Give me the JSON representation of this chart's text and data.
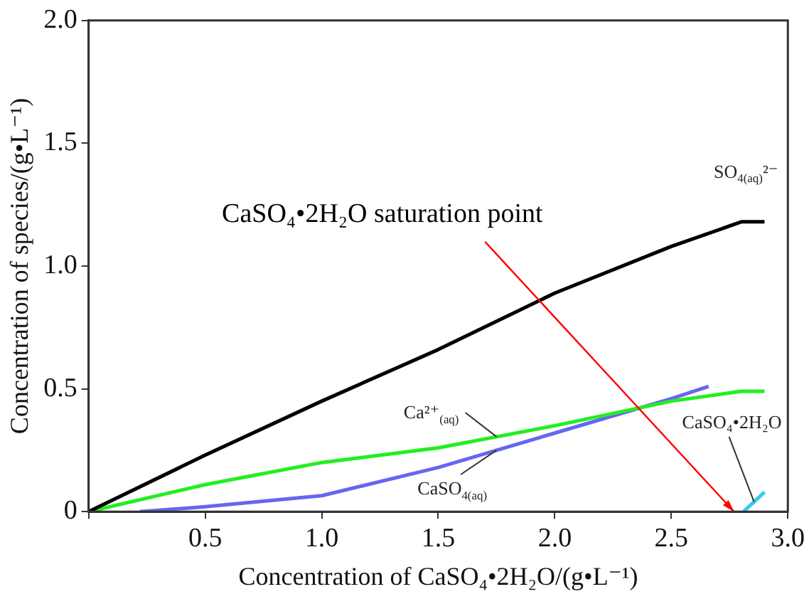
{
  "chart_data": {
    "type": "line",
    "xlabel": "Concentration of CaSO₄•2H₂O/(g•L⁻¹)",
    "ylabel": "Concentration of species/(g•L⁻¹)",
    "xlim": [
      0,
      3
    ],
    "ylim": [
      0,
      2
    ],
    "xticks": [
      {
        "value": 0,
        "label": null
      },
      0.5,
      {
        "value": 1,
        "label": "1.0"
      },
      1.5,
      {
        "value": 2,
        "label": "2.0"
      },
      2.5,
      {
        "value": 3,
        "label": "3.0"
      }
    ],
    "yticks": [
      0,
      0.5,
      {
        "value": 1,
        "label": "1.0"
      },
      1.5,
      {
        "value": 2,
        "label": "2.0"
      }
    ],
    "grid": false,
    "legend": false,
    "marker": "none",
    "line_style": "solid",
    "series": [
      {
        "name": "SO$_{4(aq)}$²⁻",
        "color": "#000000",
        "x": [
          0,
          0.5,
          1,
          1.5,
          2,
          2.5,
          2.8,
          2.9
        ],
        "values": [
          0,
          0.23,
          0.45,
          0.66,
          0.89,
          1.08,
          1.18,
          1.18
        ]
      },
      {
        "name": "Ca²⁺$_{(aq)}$",
        "color": "#22ee22",
        "x": [
          0,
          0.5,
          1,
          1.5,
          2,
          2.5,
          2.8,
          2.9
        ],
        "values": [
          0,
          0.11,
          0.2,
          0.26,
          0.35,
          0.45,
          0.49,
          0.49
        ]
      },
      {
        "name": "CaSO$_{4(aq)}$",
        "color": "#6666ee",
        "x": [
          0.22,
          0.5,
          1,
          1.5,
          2,
          2.5,
          2.66
        ],
        "values": [
          0,
          0.02,
          0.065,
          0.18,
          0.32,
          0.46,
          0.51
        ]
      },
      {
        "name": "CaSO₄•2H₂O",
        "color": "#33ccee",
        "x": [
          2.81,
          2.9
        ],
        "values": [
          0,
          0.08
        ]
      }
    ],
    "annotations": [
      "CaSO₄•2H₂O saturation point"
    ]
  }
}
